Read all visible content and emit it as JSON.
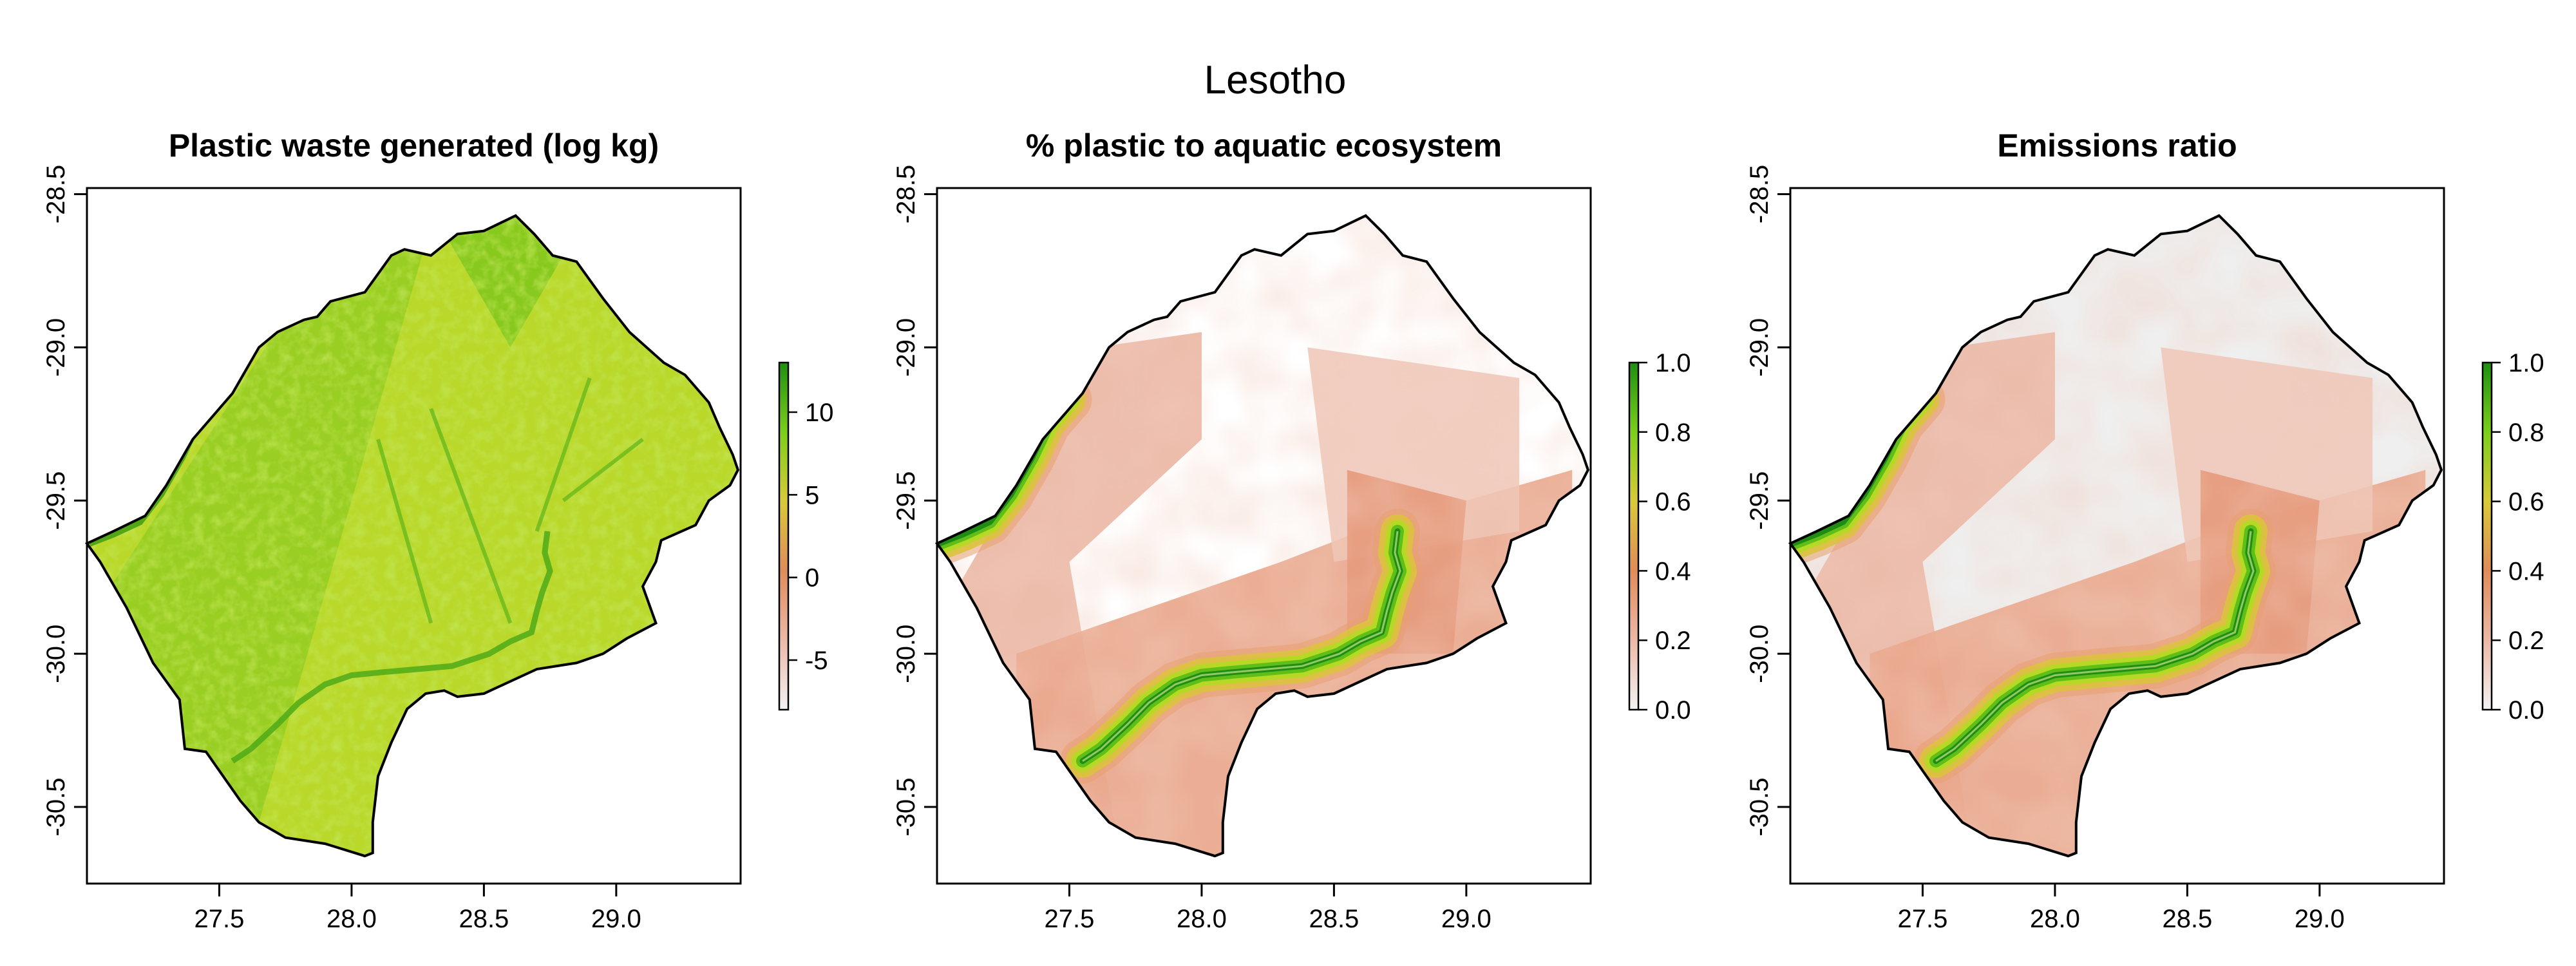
{
  "figure": {
    "title": "Lesotho"
  },
  "chart_data": [
    {
      "type": "heatmap",
      "title": "Plastic waste generated (log kg)",
      "xlabel": "",
      "ylabel": "",
      "xlim": [
        27.0,
        29.47
      ],
      "ylim": [
        -30.75,
        -28.48
      ],
      "xticks": [
        "27.5",
        "28.0",
        "28.5",
        "29.0"
      ],
      "yticks": [
        "-28.5",
        "-29.0",
        "-29.5",
        "-30.0",
        "-30.5"
      ],
      "colorbar": {
        "ticks": [
          "-5",
          "0",
          "5",
          "10"
        ],
        "range": [
          -8,
          13
        ],
        "colors": [
          "#f2f2f2",
          "#ecb9a7",
          "#e08c5a",
          "#d9c93a",
          "#7cce1c",
          "#1e8f12"
        ]
      },
      "description_values": {
        "dominant_range": [
          3,
          10
        ]
      }
    },
    {
      "type": "heatmap",
      "title": "% plastic to aquatic ecosystem",
      "xlabel": "",
      "ylabel": "",
      "xlim": [
        27.0,
        29.47
      ],
      "ylim": [
        -30.75,
        -28.48
      ],
      "xticks": [
        "27.5",
        "28.0",
        "28.5",
        "29.0"
      ],
      "yticks": [
        "-28.5",
        "-29.0",
        "-29.5",
        "-30.0",
        "-30.5"
      ],
      "colorbar": {
        "ticks": [
          "0.0",
          "0.2",
          "0.4",
          "0.6",
          "0.8",
          "1.0"
        ],
        "range": [
          0,
          1
        ],
        "colors": [
          "#f2f2f2",
          "#ecb9a7",
          "#e08c5a",
          "#d9c93a",
          "#7cce1c",
          "#1e8f12"
        ]
      }
    },
    {
      "type": "heatmap",
      "title": "Emissions ratio",
      "xlabel": "",
      "ylabel": "",
      "xlim": [
        27.0,
        29.47
      ],
      "ylim": [
        -30.75,
        -28.48
      ],
      "xticks": [
        "27.5",
        "28.0",
        "28.5",
        "29.0"
      ],
      "yticks": [
        "-28.5",
        "-29.0",
        "-29.5",
        "-30.0",
        "-30.5"
      ],
      "colorbar": {
        "ticks": [
          "0.0",
          "0.2",
          "0.4",
          "0.6",
          "0.8",
          "1.0"
        ],
        "range": [
          0,
          1
        ],
        "colors": [
          "#f2f2f2",
          "#ecb9a7",
          "#e08c5a",
          "#d9c93a",
          "#7cce1c",
          "#1e8f12"
        ]
      }
    }
  ]
}
